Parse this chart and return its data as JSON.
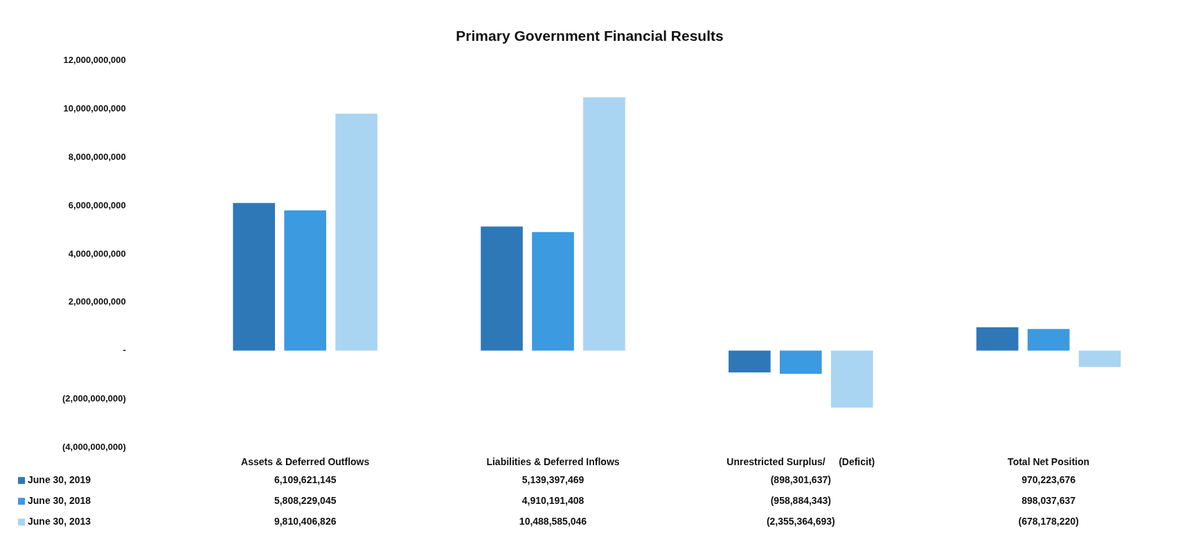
{
  "chart_data": {
    "type": "bar",
    "title": "Primary Government Financial Results",
    "categories": [
      "Assets & Deferred Outflows",
      "Liabilities & Deferred Inflows",
      "Unrestricted Surplus/     (Deficit)",
      "Total Net Position"
    ],
    "series": [
      {
        "name": "June 30, 2019",
        "color": "#2e78b8",
        "values": [
          6109621145,
          5139397469,
          -898301637,
          970223676
        ],
        "value_labels": [
          "6,109,621,145",
          "5,139,397,469",
          "(898,301,637)",
          "970,223,676"
        ]
      },
      {
        "name": "June 30, 2018",
        "color": "#3c9ae0",
        "values": [
          5808229045,
          4910191408,
          -958884343,
          898037637
        ],
        "value_labels": [
          "5,808,229,045",
          "4,910,191,408",
          "(958,884,343)",
          "898,037,637"
        ]
      },
      {
        "name": "June 30, 2013",
        "color": "#a9d5f3",
        "values": [
          9810406826,
          10488585046,
          -2355364693,
          -678178220
        ],
        "value_labels": [
          "9,810,406,826",
          "10,488,585,046",
          "(2,355,364,693)",
          "(678,178,220)"
        ]
      }
    ],
    "ylim": [
      -4000000000,
      12000000000
    ],
    "yticks": [
      {
        "value": -4000000000,
        "label": "(4,000,000,000)"
      },
      {
        "value": -2000000000,
        "label": "(2,000,000,000)"
      },
      {
        "value": 0,
        "label": "-"
      },
      {
        "value": 2000000000,
        "label": "2,000,000,000"
      },
      {
        "value": 4000000000,
        "label": "4,000,000,000"
      },
      {
        "value": 6000000000,
        "label": "6,000,000,000"
      },
      {
        "value": 8000000000,
        "label": "8,000,000,000"
      },
      {
        "value": 10000000000,
        "label": "10,000,000,000"
      },
      {
        "value": 12000000000,
        "label": "12,000,000,000"
      }
    ],
    "grid": false,
    "legend": "bottom left"
  }
}
